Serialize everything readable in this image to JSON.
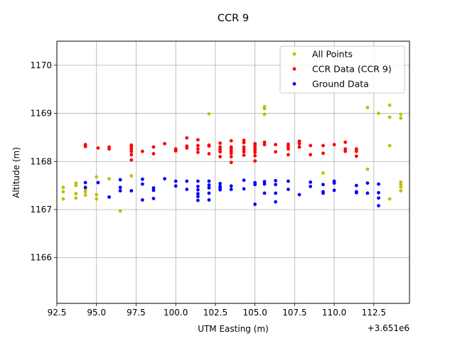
{
  "chart_data": {
    "type": "scatter",
    "title": "CCR 9",
    "xlabel": "UTM Easting (m)",
    "ylabel": "Altitude (m)",
    "x_offset_label": "+3.651e6",
    "xlim": [
      92.5,
      114.75
    ],
    "ylim": [
      1165.05,
      1170.5
    ],
    "x_ticks": [
      92.5,
      95.0,
      97.5,
      100.0,
      102.5,
      105.0,
      107.5,
      110.0,
      112.5
    ],
    "x_tick_labels": [
      "92.5",
      "95.0",
      "97.5",
      "100.0",
      "102.5",
      "105.0",
      "107.5",
      "110.0",
      "112.5"
    ],
    "y_ticks": [
      1166,
      1167,
      1168,
      1169,
      1170
    ],
    "y_tick_labels": [
      "1166",
      "1167",
      "1168",
      "1169",
      "1170"
    ],
    "grid": true,
    "legend_position": "top-right",
    "series": [
      {
        "name": "All Points",
        "color": "#bfbf00",
        "points": [
          [
            92.9,
            1167.46
          ],
          [
            92.9,
            1167.37
          ],
          [
            92.9,
            1167.22
          ],
          [
            93.7,
            1167.55
          ],
          [
            93.7,
            1167.5
          ],
          [
            93.7,
            1167.33
          ],
          [
            93.7,
            1167.24
          ],
          [
            94.3,
            1167.42
          ],
          [
            94.3,
            1167.37
          ],
          [
            94.3,
            1167.3
          ],
          [
            95.0,
            1167.68
          ],
          [
            95.0,
            1167.31
          ],
          [
            95.0,
            1167.22
          ],
          [
            95.8,
            1167.64
          ],
          [
            96.5,
            1166.97
          ],
          [
            97.2,
            1167.7
          ],
          [
            102.1,
            1168.99
          ],
          [
            105.6,
            1169.14
          ],
          [
            105.6,
            1169.1
          ],
          [
            105.6,
            1168.98
          ],
          [
            109.3,
            1167.76
          ],
          [
            112.1,
            1169.12
          ],
          [
            112.1,
            1167.84
          ],
          [
            112.8,
            1169.0
          ],
          [
            113.5,
            1169.17
          ],
          [
            113.5,
            1168.92
          ],
          [
            113.5,
            1168.33
          ],
          [
            113.5,
            1167.22
          ],
          [
            114.2,
            1168.98
          ],
          [
            114.2,
            1168.9
          ],
          [
            114.2,
            1167.57
          ],
          [
            114.2,
            1167.52
          ],
          [
            114.2,
            1167.47
          ],
          [
            114.2,
            1167.39
          ]
        ]
      },
      {
        "name": "CCR Data (CCR 9)",
        "color": "#ff0000",
        "points": [
          [
            94.3,
            1168.35
          ],
          [
            94.3,
            1168.31
          ],
          [
            95.1,
            1168.28
          ],
          [
            95.8,
            1168.3
          ],
          [
            95.8,
            1168.26
          ],
          [
            97.2,
            1168.34
          ],
          [
            97.2,
            1168.3
          ],
          [
            97.2,
            1168.26
          ],
          [
            97.2,
            1168.21
          ],
          [
            97.2,
            1168.14
          ],
          [
            97.2,
            1168.03
          ],
          [
            97.9,
            1168.21
          ],
          [
            98.6,
            1168.3
          ],
          [
            98.6,
            1168.16
          ],
          [
            99.3,
            1168.37
          ],
          [
            100.0,
            1168.26
          ],
          [
            100.0,
            1168.22
          ],
          [
            100.7,
            1168.49
          ],
          [
            100.7,
            1168.32
          ],
          [
            100.7,
            1168.28
          ],
          [
            101.4,
            1168.45
          ],
          [
            101.4,
            1168.33
          ],
          [
            101.4,
            1168.26
          ],
          [
            101.4,
            1168.19
          ],
          [
            102.1,
            1168.34
          ],
          [
            102.1,
            1168.32
          ],
          [
            102.1,
            1168.16
          ],
          [
            102.8,
            1168.38
          ],
          [
            102.8,
            1168.3
          ],
          [
            102.8,
            1168.25
          ],
          [
            102.8,
            1168.2
          ],
          [
            102.8,
            1168.1
          ],
          [
            103.5,
            1168.43
          ],
          [
            103.5,
            1168.3
          ],
          [
            103.5,
            1168.26
          ],
          [
            103.5,
            1168.22
          ],
          [
            103.5,
            1168.17
          ],
          [
            103.5,
            1168.1
          ],
          [
            103.5,
            1167.98
          ],
          [
            104.3,
            1168.44
          ],
          [
            104.3,
            1168.39
          ],
          [
            104.3,
            1168.3
          ],
          [
            104.3,
            1168.25
          ],
          [
            104.3,
            1168.2
          ],
          [
            104.3,
            1168.13
          ],
          [
            105.0,
            1168.37
          ],
          [
            105.0,
            1168.33
          ],
          [
            105.0,
            1168.28
          ],
          [
            105.0,
            1168.24
          ],
          [
            105.0,
            1168.19
          ],
          [
            105.0,
            1168.12
          ],
          [
            105.0,
            1168.01
          ],
          [
            105.6,
            1168.4
          ],
          [
            105.6,
            1168.35
          ],
          [
            106.3,
            1168.35
          ],
          [
            106.3,
            1168.2
          ],
          [
            107.1,
            1168.36
          ],
          [
            107.1,
            1168.31
          ],
          [
            107.1,
            1168.26
          ],
          [
            107.1,
            1168.14
          ],
          [
            107.8,
            1168.42
          ],
          [
            107.8,
            1168.37
          ],
          [
            107.8,
            1168.3
          ],
          [
            108.5,
            1168.33
          ],
          [
            108.5,
            1168.14
          ],
          [
            109.3,
            1168.33
          ],
          [
            109.3,
            1168.17
          ],
          [
            110.0,
            1168.35
          ],
          [
            110.7,
            1168.4
          ],
          [
            110.7,
            1168.26
          ],
          [
            110.7,
            1168.21
          ],
          [
            111.4,
            1168.26
          ],
          [
            111.4,
            1168.21
          ],
          [
            111.4,
            1168.11
          ]
        ]
      },
      {
        "name": "Ground Data",
        "color": "#0000ff",
        "points": [
          [
            94.3,
            1167.56
          ],
          [
            94.3,
            1167.46
          ],
          [
            95.1,
            1167.56
          ],
          [
            95.8,
            1167.26
          ],
          [
            96.5,
            1167.62
          ],
          [
            96.5,
            1167.46
          ],
          [
            96.5,
            1167.39
          ],
          [
            97.2,
            1167.39
          ],
          [
            97.9,
            1167.63
          ],
          [
            97.9,
            1167.53
          ],
          [
            97.9,
            1167.2
          ],
          [
            98.6,
            1167.45
          ],
          [
            98.6,
            1167.4
          ],
          [
            98.6,
            1167.23
          ],
          [
            99.3,
            1167.64
          ],
          [
            100.0,
            1167.59
          ],
          [
            100.0,
            1167.49
          ],
          [
            100.7,
            1167.59
          ],
          [
            100.7,
            1167.42
          ],
          [
            101.4,
            1167.59
          ],
          [
            101.4,
            1167.48
          ],
          [
            101.4,
            1167.41
          ],
          [
            101.4,
            1167.33
          ],
          [
            101.4,
            1167.27
          ],
          [
            101.4,
            1167.19
          ],
          [
            102.1,
            1167.59
          ],
          [
            102.1,
            1167.51
          ],
          [
            102.1,
            1167.45
          ],
          [
            102.1,
            1167.34
          ],
          [
            102.1,
            1167.2
          ],
          [
            102.8,
            1167.54
          ],
          [
            102.8,
            1167.48
          ],
          [
            102.8,
            1167.45
          ],
          [
            102.8,
            1167.41
          ],
          [
            103.5,
            1167.49
          ],
          [
            103.5,
            1167.42
          ],
          [
            104.3,
            1167.61
          ],
          [
            104.3,
            1167.43
          ],
          [
            105.0,
            1167.56
          ],
          [
            105.0,
            1167.52
          ],
          [
            105.0,
            1167.11
          ],
          [
            105.6,
            1167.58
          ],
          [
            105.6,
            1167.53
          ],
          [
            105.6,
            1167.34
          ],
          [
            106.3,
            1167.6
          ],
          [
            106.3,
            1167.52
          ],
          [
            106.3,
            1167.34
          ],
          [
            106.3,
            1167.16
          ],
          [
            107.1,
            1167.59
          ],
          [
            107.1,
            1167.42
          ],
          [
            107.8,
            1167.31
          ],
          [
            108.5,
            1167.57
          ],
          [
            108.5,
            1167.48
          ],
          [
            109.3,
            1167.52
          ],
          [
            109.3,
            1167.37
          ],
          [
            109.3,
            1167.34
          ],
          [
            110.0,
            1167.59
          ],
          [
            110.0,
            1167.55
          ],
          [
            110.0,
            1167.4
          ],
          [
            111.4,
            1167.5
          ],
          [
            111.4,
            1167.37
          ],
          [
            111.4,
            1167.35
          ],
          [
            112.1,
            1167.55
          ],
          [
            112.1,
            1167.34
          ],
          [
            112.8,
            1167.53
          ],
          [
            112.8,
            1167.35
          ],
          [
            112.8,
            1167.24
          ],
          [
            112.8,
            1167.08
          ]
        ]
      }
    ]
  }
}
